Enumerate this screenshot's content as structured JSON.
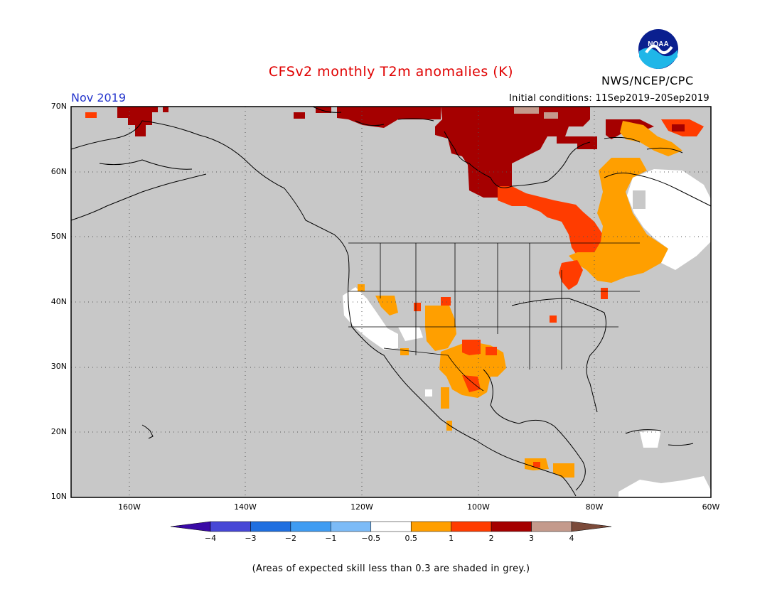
{
  "title": "CFSv2 monthly T2m anomalies (K)",
  "valid_month": "Nov 2019",
  "initial_conditions": "Initial conditions: 11Sep2019–20Sep2019",
  "agency": "NWS/NCEP/CPC",
  "logo_text": "NOAA",
  "skill_note": "(Areas of expected skill less than 0.3 are shaded in grey.)",
  "map": {
    "lat_labels": [
      "10N",
      "20N",
      "30N",
      "40N",
      "50N",
      "60N",
      "70N"
    ],
    "lon_labels": [
      "160W",
      "140W",
      "120W",
      "100W",
      "80W",
      "60W"
    ],
    "grey_mask_color": "#c8c8c8",
    "frame_color": "#000000"
  },
  "colorbar": {
    "labels": [
      "−4",
      "−3",
      "−2",
      "−1",
      "−0.5",
      "0.5",
      "1",
      "2",
      "3",
      "4"
    ],
    "colors": [
      "#3a0aa6",
      "#4747d6",
      "#1f6fe0",
      "#3f9cf2",
      "#7cbbf7",
      "#ffffff",
      "#ff9f00",
      "#ff3c00",
      "#a50000",
      "#c49a8c",
      "#7b4a3a"
    ]
  },
  "anomaly_regions": [
    {
      "region": "N. Alaska coast",
      "category": "2 to 3"
    },
    {
      "region": "N. Canada / Hudson Bay",
      "category": "2 to 3"
    },
    {
      "region": "Quebec / Ontario band",
      "category": "1 to 2"
    },
    {
      "region": "E. Canada / Great Lakes",
      "category": "0.5 to 1"
    },
    {
      "region": "Labrador",
      "category": "-0.5 to 0.5"
    },
    {
      "region": "SW United States",
      "category": "0.5 to 1"
    },
    {
      "region": "Texas / N. Mexico",
      "category": "0.5 to 1"
    },
    {
      "region": "Central America",
      "category": "0.5 to 1"
    }
  ]
}
